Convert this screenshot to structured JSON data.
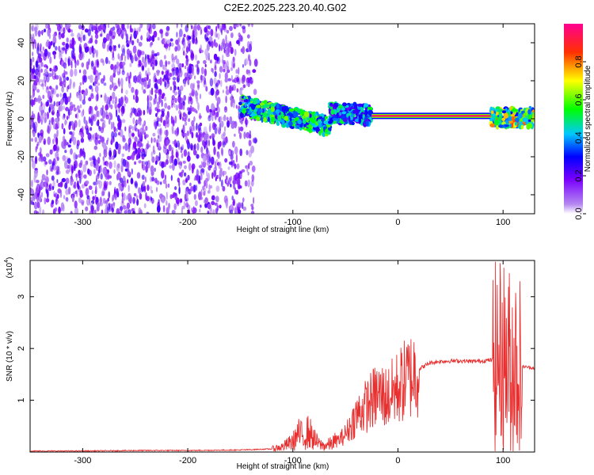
{
  "title": "C2E2.2025.223.20.40.G02",
  "chart_data": [
    {
      "type": "heatmap",
      "xlabel": "Height of straight line (km)",
      "ylabel": "Frequency (Hz)",
      "xlim": [
        -350,
        130
      ],
      "ylim": [
        -50,
        50
      ],
      "xticks": [
        -300,
        -200,
        -100,
        0,
        100
      ],
      "xtick_labels": [
        "-300",
        "-200",
        "-100",
        "0",
        "100"
      ],
      "yticks": [
        -40,
        -20,
        0,
        20,
        40
      ],
      "ytick_labels": [
        "-40",
        "-20",
        "0",
        "20",
        "40"
      ],
      "colorbar": {
        "label": "Normalized spectral amplitude",
        "range": [
          0,
          1
        ],
        "ticks": [
          0.0,
          0.2,
          0.4,
          0.6,
          0.8
        ],
        "tick_labels": [
          "0.0",
          "0.2",
          "0.4",
          "0.6",
          "0.8"
        ],
        "colormap": [
          "#ffffff",
          "#8a2be2",
          "#0000ff",
          "#00ffff",
          "#00ff00",
          "#ffff00",
          "#ff0000",
          "#ff00aa"
        ]
      },
      "regions": [
        {
          "x_range": [
            -350,
            -135
          ],
          "y_range": [
            -50,
            50
          ],
          "level": 0.12,
          "description_values": "broadband noise"
        },
        {
          "x_range": [
            -150,
            -65
          ],
          "freq_start": 7,
          "freq_end": -4,
          "level": 0.45
        },
        {
          "x_range": [
            -65,
            -25
          ],
          "freq_start": 3,
          "freq_end": 2,
          "level": 0.4
        },
        {
          "x_range": [
            -25,
            90
          ],
          "freq": 1.5,
          "level": 0.95
        },
        {
          "x_range": [
            88,
            130
          ],
          "freq": 0.5,
          "level": 0.6
        }
      ],
      "grid": false
    },
    {
      "type": "line",
      "xlabel": "Height of straight line (km)",
      "ylabel": "SNR (10 * v/v)",
      "y_multiplier_label": "(x10",
      "y_multiplier_exp": "4",
      "xlim": [
        -350,
        130
      ],
      "ylim": [
        0,
        3.7
      ],
      "xticks": [
        -300,
        -200,
        -100,
        0,
        100
      ],
      "xtick_labels": [
        "-300",
        "-200",
        "-100",
        "0",
        "100"
      ],
      "yticks": [
        1,
        2,
        3
      ],
      "ytick_labels": [
        "1",
        "2",
        "3"
      ],
      "series": [
        {
          "color": "#e83030",
          "x": [
            -350,
            -300,
            -250,
            -200,
            -150,
            -120,
            -110,
            -100,
            -95,
            -90,
            -85,
            -80,
            -75,
            -70,
            -65,
            -60,
            -55,
            -50,
            -45,
            -40,
            -35,
            -30,
            -25,
            -20,
            -15,
            -10,
            -5,
            0,
            10,
            20,
            30,
            40,
            50,
            60,
            70,
            80,
            90,
            95,
            100,
            105,
            110,
            115,
            120,
            130
          ],
          "y": [
            0.02,
            0.02,
            0.03,
            0.03,
            0.04,
            0.06,
            0.1,
            0.2,
            0.35,
            0.3,
            0.4,
            0.25,
            0.15,
            0.12,
            0.15,
            0.2,
            0.25,
            0.35,
            0.5,
            0.7,
            0.8,
            0.9,
            1.0,
            1.1,
            1.1,
            1.05,
            1.15,
            1.25,
            1.45,
            1.6,
            1.72,
            1.75,
            1.76,
            1.76,
            1.75,
            1.76,
            1.78,
            1.8,
            1.9,
            1.7,
            1.8,
            1.65,
            1.65,
            1.62
          ]
        }
      ],
      "grid": false
    }
  ]
}
